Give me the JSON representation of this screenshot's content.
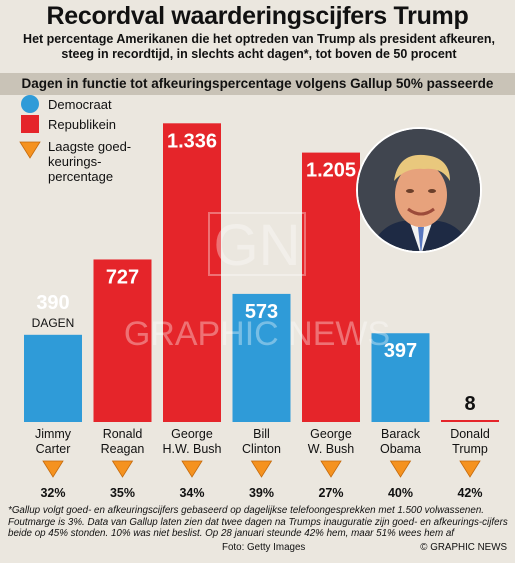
{
  "header": {
    "title": "Recordval waarderingscijfers Trump",
    "subtitle": "Het percentage Amerikanen die het optreden van Trump als president afkeuren, steeg in recordtijd, in slechts acht dagen*, tot boven de 50 procent",
    "chart_title": "Dagen in functie tot afkeuringspercentage volgens Gallup 50% passeerde"
  },
  "legend": [
    {
      "label": "Democraat",
      "color": "#2f9bd8",
      "shape": "circle"
    },
    {
      "label": "Republikein",
      "color": "#e5252a",
      "shape": "square"
    },
    {
      "label": "Laagste goed-\nkeurings-\npercentage",
      "color": "#f5921f",
      "shape": "triangle"
    }
  ],
  "chart_data": {
    "type": "bar",
    "title": "Dagen in functie tot afkeuringspercentage volgens Gallup 50% passeerde",
    "unit_label": "DAGEN",
    "unit_label_on": "Jimmy Carter",
    "categories": [
      "Jimmy\nCarter",
      "Ronald\nReagan",
      "George\nH.W. Bush",
      "Bill\nClinton",
      "George\nW. Bush",
      "Barack\nObama",
      "Donald\nTrump"
    ],
    "values": [
      390,
      727,
      1336,
      573,
      1205,
      397,
      8
    ],
    "value_labels": [
      "390",
      "727",
      "1.336",
      "573",
      "1.205",
      "397",
      "8"
    ],
    "party": [
      "Democraat",
      "Republikein",
      "Republikein",
      "Democraat",
      "Republikein",
      "Democraat",
      "Republikein"
    ],
    "lowest_approval": [
      "32%",
      "35%",
      "34%",
      "39%",
      "27%",
      "40%",
      "42%"
    ],
    "ylim": [
      0,
      1400
    ],
    "grid": false,
    "legend_position": "top-left"
  },
  "watermark": {
    "monogram": "GN",
    "text": "GRAPHIC NEWS"
  },
  "footnote": "*Gallup volgt goed- en afkeuringscijfers gebaseerd op dagelijkse telefoongesprekken met 1.500 volwassenen. Foutmarge is 3%. Data van Gallup laten zien dat twee dagen na Trumps inauguratie zijn goed- en afkeurings-cijfers beide op 45% stonden. 10% was niet beslist. Op 28 januari steunde 42% hem, maar 51% wees hem af",
  "photo_credit": "Foto: Getty Images",
  "copyright": "© GRAPHIC NEWS"
}
